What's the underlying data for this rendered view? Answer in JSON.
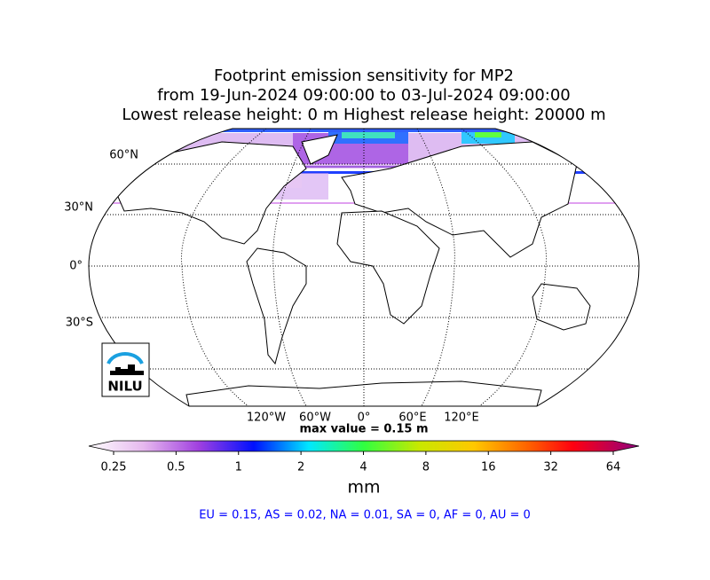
{
  "title": [
    "Footprint emission sensitivity for MP2",
    "from 19-Jun-2024 09:00:00 to 03-Jul-2024 09:00:00",
    "Lowest release height: 0 m      Highest release height: 20000 m"
  ],
  "map": {
    "lat_labels": [
      "60°N",
      "30°N",
      "0°",
      "30°S"
    ],
    "lon_labels": [
      "120°W",
      "60°W",
      "0°",
      "60°E",
      "120°E"
    ],
    "max_value_text": "max value = 0.15 m"
  },
  "logo": "NILU",
  "colorbar": {
    "ticks": [
      0.25,
      0.5,
      1,
      2,
      4,
      8,
      16,
      32,
      64
    ],
    "label": "mm",
    "log_scale": true
  },
  "regions": "EU = 0.15,  AS = 0.02,  NA = 0.01,  SA = 0,  AF = 0,  AU = 0"
}
